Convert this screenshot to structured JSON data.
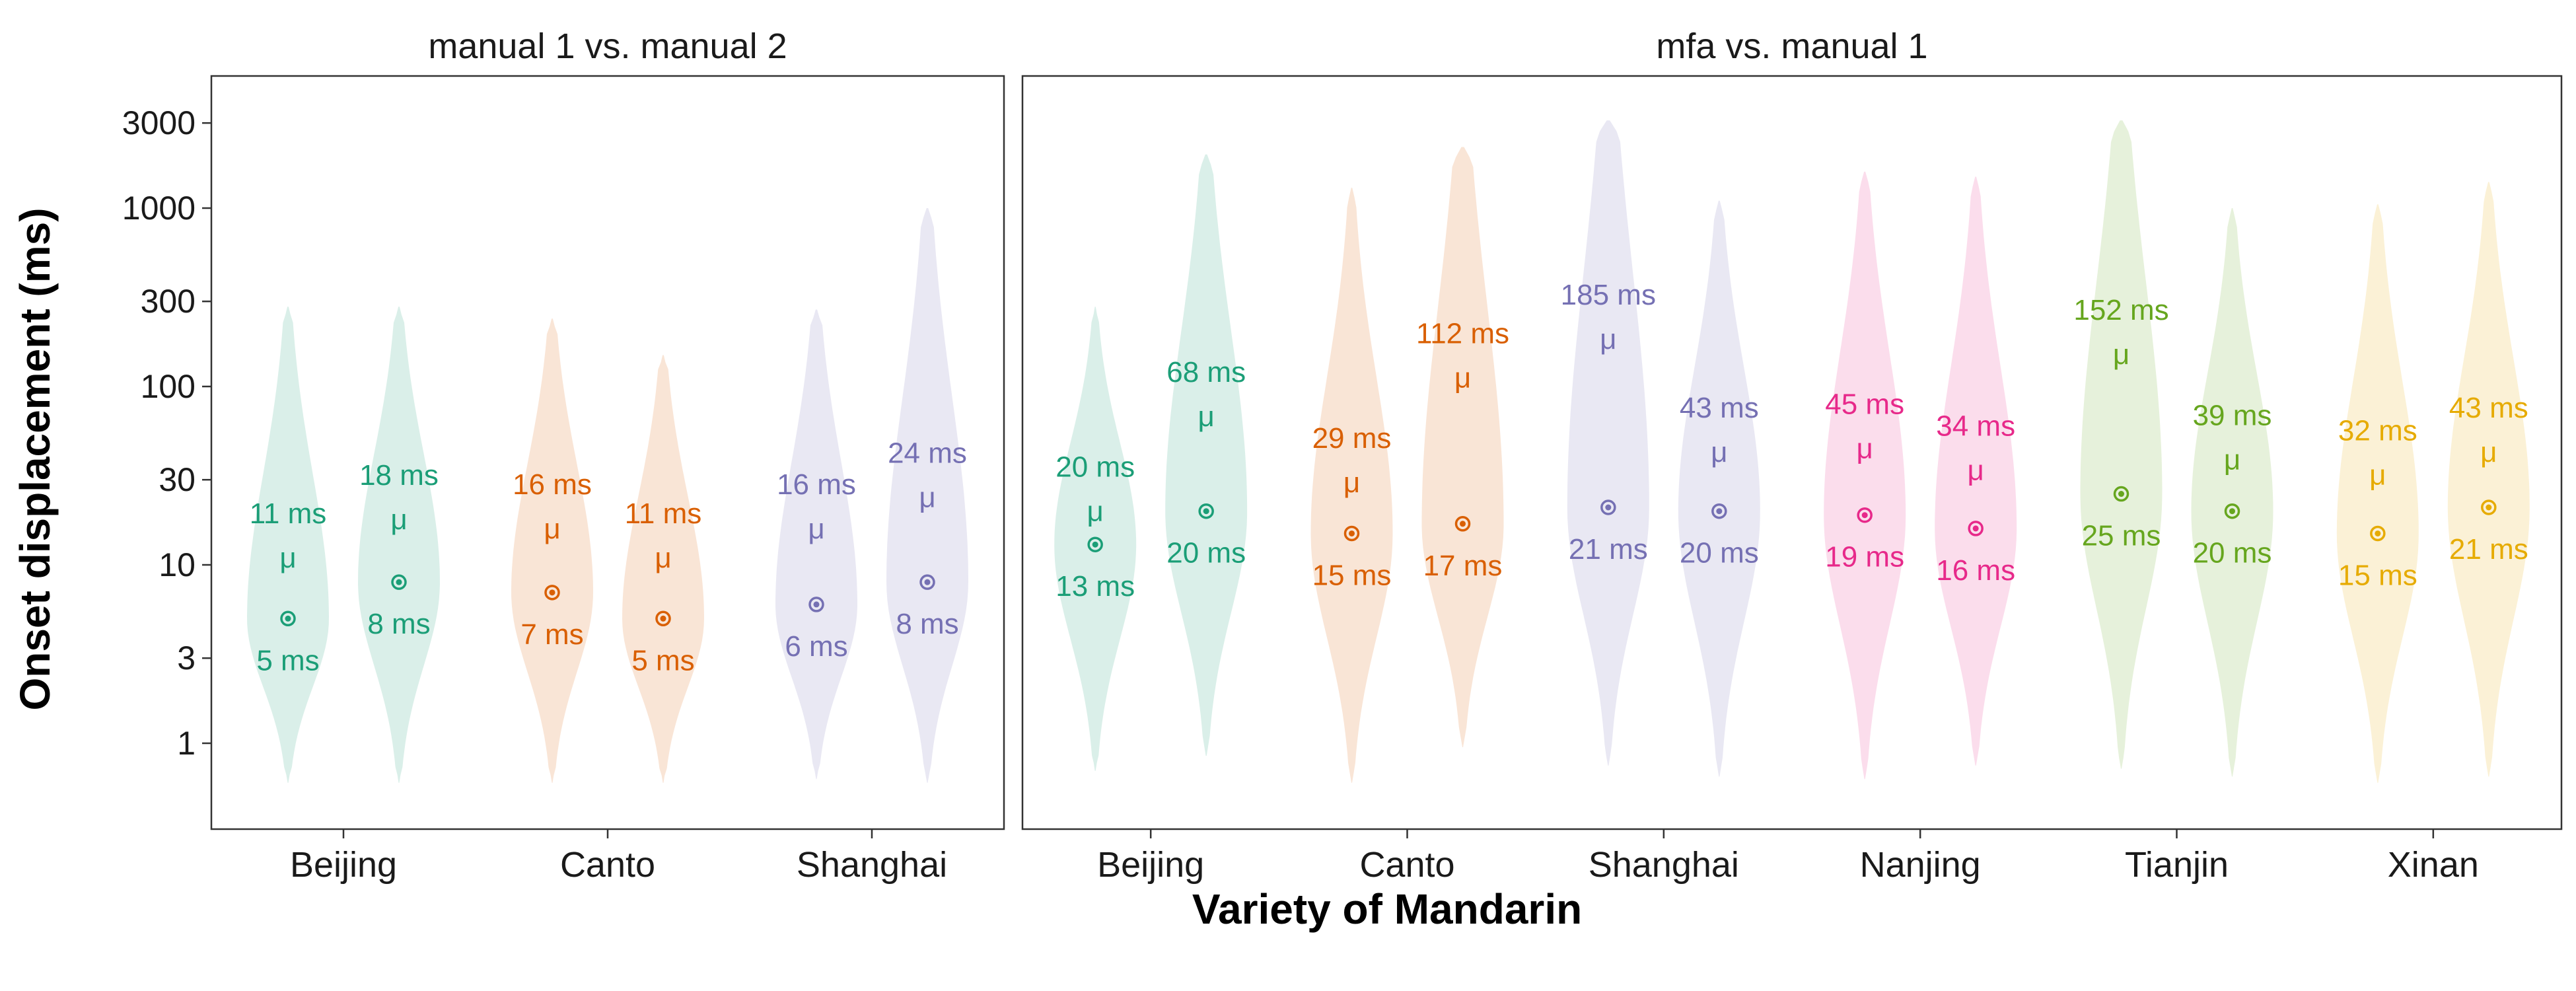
{
  "chart_data": {
    "type": "violin",
    "xlabel": "Variety of Mandarin",
    "ylabel": "Onset displacement (ms)",
    "y_scale": "log",
    "ylim": [
      0.6,
      3300
    ],
    "yticks": [
      1,
      3,
      10,
      30,
      100,
      300,
      1000,
      3000
    ],
    "ytick_labels": [
      "1",
      "3",
      "10",
      "30",
      "100",
      "300",
      "1000",
      "3000"
    ],
    "mu_symbol": "μ",
    "colors": {
      "Beijing": "#1b9e77",
      "Canto": "#d95f02",
      "Shanghai": "#7570b3",
      "Nanjing": "#e7298a",
      "Tianjin": "#66a61e",
      "Xinan": "#e6ab02"
    },
    "panels": [
      {
        "title": "manual 1 vs. manual 2",
        "categories": [
          "Beijing",
          "Canto",
          "Shanghai"
        ],
        "violins": [
          {
            "category": "Beijing",
            "mean": 11,
            "median": 5,
            "mean_label": "11 ms",
            "median_label": "5 ms",
            "min": 0.6,
            "max": 280
          },
          {
            "category": "Beijing",
            "mean": 18,
            "median": 8,
            "mean_label": "18 ms",
            "median_label": "8 ms",
            "min": 0.6,
            "max": 280
          },
          {
            "category": "Canto",
            "mean": 16,
            "median": 7,
            "mean_label": "16 ms",
            "median_label": "7 ms",
            "min": 0.6,
            "max": 240
          },
          {
            "category": "Canto",
            "mean": 11,
            "median": 5,
            "mean_label": "11 ms",
            "median_label": "5 ms",
            "min": 0.6,
            "max": 150
          },
          {
            "category": "Shanghai",
            "mean": 16,
            "median": 6,
            "mean_label": "16 ms",
            "median_label": "6 ms",
            "min": 0.63,
            "max": 270
          },
          {
            "category": "Shanghai",
            "mean": 24,
            "median": 8,
            "mean_label": "24 ms",
            "median_label": "8 ms",
            "min": 0.6,
            "max": 1000
          }
        ]
      },
      {
        "title": "mfa vs. manual 1",
        "categories": [
          "Beijing",
          "Canto",
          "Shanghai",
          "Nanjing",
          "Tianjin",
          "Xinan"
        ],
        "violins": [
          {
            "category": "Beijing",
            "mean": 20,
            "median": 13,
            "mean_label": "20 ms",
            "median_label": "13 ms",
            "min": 0.7,
            "max": 280
          },
          {
            "category": "Beijing",
            "mean": 68,
            "median": 20,
            "mean_label": "68 ms",
            "median_label": "20 ms",
            "min": 0.85,
            "max": 2000
          },
          {
            "category": "Canto",
            "mean": 29,
            "median": 15,
            "mean_label": "29 ms",
            "median_label": "15 ms",
            "min": 0.6,
            "max": 1300
          },
          {
            "category": "Canto",
            "mean": 112,
            "median": 17,
            "mean_label": "112 ms",
            "median_label": "17 ms",
            "min": 0.95,
            "max": 2200
          },
          {
            "category": "Shanghai",
            "mean": 185,
            "median": 21,
            "mean_label": "185 ms",
            "median_label": "21 ms",
            "min": 0.75,
            "max": 3100
          },
          {
            "category": "Shanghai",
            "mean": 43,
            "median": 20,
            "mean_label": "43 ms",
            "median_label": "20 ms",
            "min": 0.65,
            "max": 1100
          },
          {
            "category": "Nanjing",
            "mean": 45,
            "median": 19,
            "mean_label": "45 ms",
            "median_label": "19 ms",
            "min": 0.63,
            "max": 1600
          },
          {
            "category": "Nanjing",
            "mean": 34,
            "median": 16,
            "mean_label": "34 ms",
            "median_label": "16 ms",
            "min": 0.75,
            "max": 1500
          },
          {
            "category": "Tianjin",
            "mean": 152,
            "median": 25,
            "mean_label": "152 ms",
            "median_label": "25 ms",
            "min": 0.72,
            "max": 3100
          },
          {
            "category": "Tianjin",
            "mean": 39,
            "median": 20,
            "mean_label": "39 ms",
            "median_label": "20 ms",
            "min": 0.65,
            "max": 1000
          },
          {
            "category": "Xinan",
            "mean": 32,
            "median": 15,
            "mean_label": "32 ms",
            "median_label": "15 ms",
            "min": 0.6,
            "max": 1050
          },
          {
            "category": "Xinan",
            "mean": 43,
            "median": 21,
            "mean_label": "43 ms",
            "median_label": "21 ms",
            "min": 0.65,
            "max": 1400
          }
        ]
      }
    ]
  }
}
